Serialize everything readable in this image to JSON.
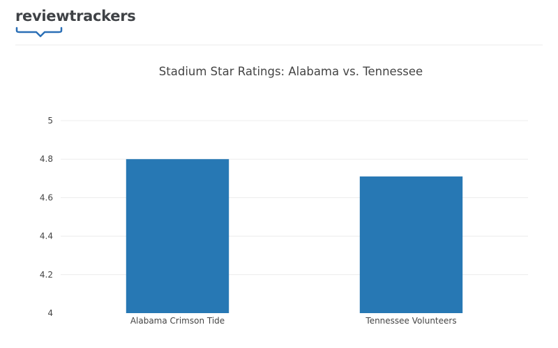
{
  "brand": {
    "name": "reviewtrackers",
    "text_color": "#3f4246",
    "accent_color": "#2a6fb6"
  },
  "chart_data": {
    "type": "bar",
    "title": "Stadium Star Ratings: Alabama vs. Tennessee",
    "xlabel": "",
    "ylabel": "",
    "categories": [
      "Alabama Crimson Tide",
      "Tennessee Volunteers"
    ],
    "values": [
      4.8,
      4.71
    ],
    "ylim": [
      4,
      5
    ],
    "yticks": [
      4,
      4.2,
      4.4,
      4.6,
      4.8,
      5
    ],
    "ytick_labels": [
      "4",
      "4.2",
      "4.4",
      "4.6",
      "4.8",
      "5"
    ],
    "grid": true,
    "legend": "none",
    "bar_color": "#2778b4"
  }
}
